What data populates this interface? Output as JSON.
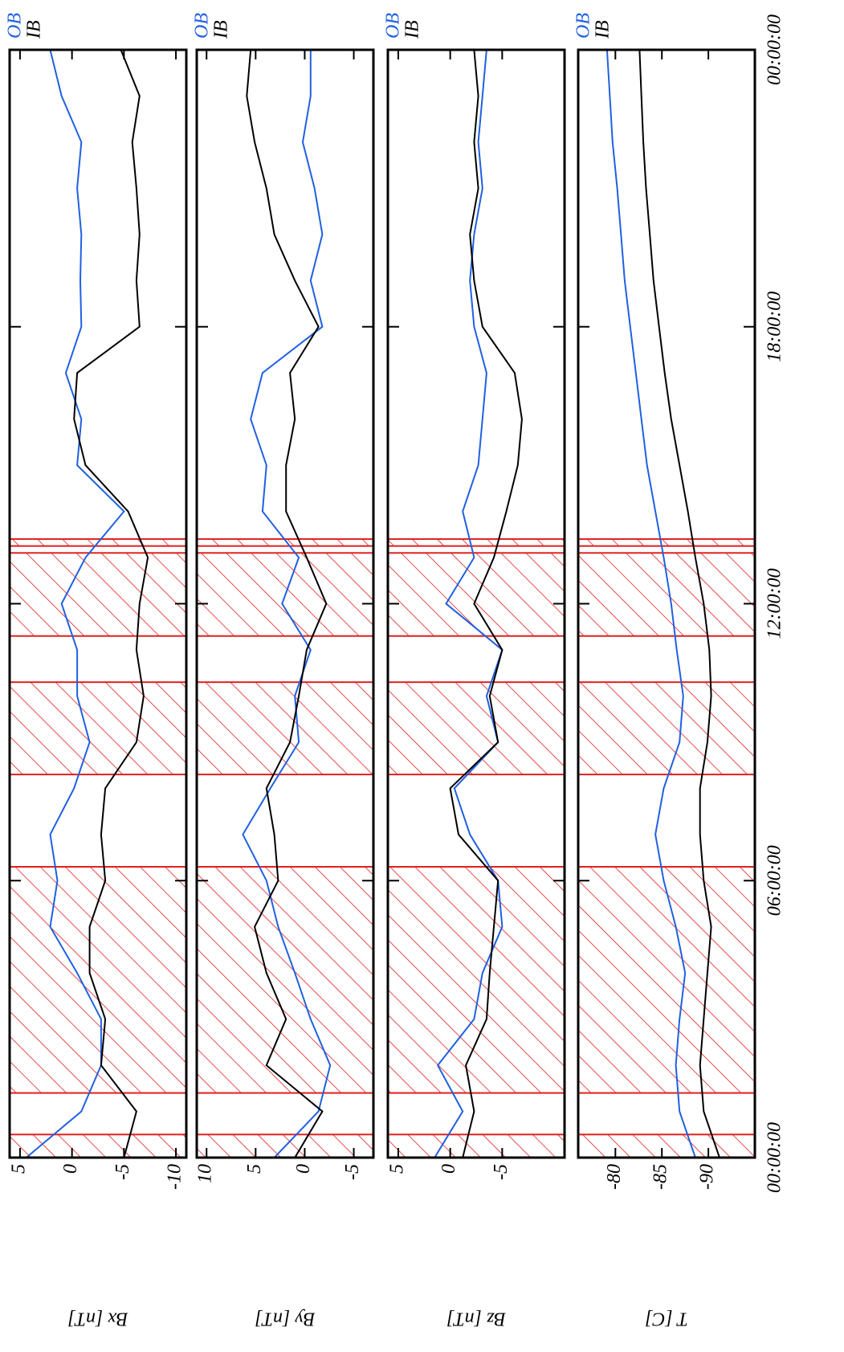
{
  "chart_data": [
    {
      "type": "line",
      "ylabel": "Bx [nT]",
      "xlim": [
        0,
        24
      ],
      "xticks": [
        {
          "value": 0,
          "label": "00:00:00"
        },
        {
          "value": 6,
          "label": "06:00:00"
        },
        {
          "value": 12,
          "label": "12:00:00"
        },
        {
          "value": 18,
          "label": "18:00:00"
        },
        {
          "value": 24,
          "label": "00:00:00"
        }
      ],
      "ylim": [
        -11,
        6
      ],
      "yticks": [
        5,
        0,
        -5,
        -10
      ],
      "hatched_intervals": [
        [
          0,
          0.5
        ],
        [
          1.4,
          6.3
        ],
        [
          8.3,
          10.3
        ],
        [
          11.3,
          13.1
        ],
        [
          13.25,
          13.4
        ]
      ],
      "hatch_color": "#e02020",
      "x": [
        0,
        1,
        2,
        3,
        4,
        5,
        6,
        7,
        8,
        9,
        10,
        11,
        12,
        13,
        14,
        15,
        16,
        17,
        18,
        19,
        20,
        21,
        22,
        23,
        24
      ],
      "series": [
        {
          "name": "OB",
          "color": "#2060e0",
          "values": [
            4.4,
            -0.9,
            -2.8,
            -2.8,
            -0.5,
            2.1,
            1.4,
            2.1,
            -0.2,
            -1.7,
            -0.5,
            -0.5,
            1.0,
            -1.3,
            -5,
            -0.5,
            -0.9,
            0.6,
            -0.9,
            -0.8,
            -0.9,
            -0.5,
            -0.9,
            1.0,
            2.1
          ]
        },
        {
          "name": "IB",
          "color": "#000000",
          "values": [
            -5,
            -6.2,
            -2.8,
            -3.2,
            -1.7,
            -1.7,
            -3.2,
            -2.8,
            -3.2,
            -6.2,
            -6.9,
            -6.2,
            -6.5,
            -7.3,
            -5.4,
            -1.3,
            -0.2,
            -0.5,
            -6.5,
            -6.2,
            -6.5,
            -6.2,
            -5.8,
            -6.5,
            -4.7
          ]
        }
      ]
    },
    {
      "type": "line",
      "ylabel": "By [nT]",
      "xlim": [
        0,
        24
      ],
      "xticks": [
        {
          "value": 0,
          "label": "00:00:00"
        },
        {
          "value": 6,
          "label": "06:00:00"
        },
        {
          "value": 12,
          "label": "12:00:00"
        },
        {
          "value": 18,
          "label": "18:00:00"
        },
        {
          "value": 24,
          "label": "00:00:00"
        }
      ],
      "ylim": [
        -7,
        11
      ],
      "yticks": [
        10,
        5,
        0,
        -5
      ],
      "hatched_intervals": [
        [
          0,
          0.5
        ],
        [
          1.4,
          6.3
        ],
        [
          8.3,
          10.3
        ],
        [
          11.3,
          13.1
        ],
        [
          13.25,
          13.4
        ]
      ],
      "hatch_color": "#e02020",
      "x": [
        0,
        1,
        2,
        3,
        4,
        5,
        6,
        7,
        8,
        9,
        10,
        11,
        12,
        13,
        14,
        15,
        16,
        17,
        18,
        19,
        20,
        21,
        22,
        23,
        24
      ],
      "series": [
        {
          "name": "OB",
          "color": "#2060e0",
          "values": [
            3.1,
            -1.4,
            -2.6,
            -0.6,
            1.0,
            2.7,
            3.9,
            6.3,
            3.5,
            0.6,
            1.0,
            -0.6,
            2.3,
            0.6,
            4.3,
            3.9,
            5.5,
            4.3,
            -1.8,
            -0.6,
            -1.8,
            -1.0,
            0.2,
            -0.6,
            -0.6
          ]
        },
        {
          "name": "IB",
          "color": "#000000",
          "values": [
            1.0,
            -1.8,
            3.9,
            1.9,
            3.9,
            5.1,
            2.7,
            3.1,
            3.9,
            1.5,
            0.6,
            -0.2,
            -2.2,
            -0.2,
            1.9,
            1.9,
            1.0,
            1.5,
            -1.4,
            1.0,
            3.1,
            3.9,
            5.1,
            5.9,
            5.5
          ]
        }
      ]
    },
    {
      "type": "line",
      "ylabel": "Bz [nT]",
      "xlim": [
        0,
        24
      ],
      "xticks": [
        {
          "value": 0,
          "label": "00:00:00"
        },
        {
          "value": 6,
          "label": "06:00:00"
        },
        {
          "value": 12,
          "label": "12:00:00"
        },
        {
          "value": 18,
          "label": "18:00:00"
        },
        {
          "value": 24,
          "label": "00:00:00"
        }
      ],
      "ylim": [
        -11,
        6
      ],
      "yticks": [
        5,
        0,
        -5
      ],
      "hatched_intervals": [
        [
          0,
          0.5
        ],
        [
          1.4,
          6.3
        ],
        [
          8.3,
          10.3
        ],
        [
          11.3,
          13.1
        ],
        [
          13.25,
          13.4
        ]
      ],
      "hatch_color": "#e02020",
      "x": [
        0,
        1,
        2,
        3,
        4,
        5,
        6,
        7,
        8,
        9,
        10,
        11,
        12,
        13,
        14,
        15,
        16,
        17,
        18,
        19,
        20,
        21,
        22,
        23,
        24
      ],
      "series": [
        {
          "name": "OB",
          "color": "#2060e0",
          "values": [
            1.5,
            -1.2,
            1.2,
            -2.3,
            -3.1,
            -5,
            -4.6,
            -1.9,
            -0.4,
            -4.6,
            -3.5,
            -5,
            0.4,
            -2.3,
            -1.2,
            -2.7,
            -3.1,
            -3.5,
            -2.3,
            -1.9,
            -2.3,
            -3.1,
            -2.7,
            -3.1,
            -3.5
          ]
        },
        {
          "name": "IB",
          "color": "#000000",
          "values": [
            -1.2,
            -2.3,
            -1.5,
            -3.5,
            -3.8,
            -4.2,
            -4.6,
            -0.8,
            0,
            -4.6,
            -3.8,
            -5,
            -2.3,
            -4.2,
            -5.4,
            -6.5,
            -6.9,
            -6.2,
            -3.1,
            -2.3,
            -1.9,
            -2.7,
            -2.3,
            -2.7,
            -2.3
          ]
        }
      ]
    },
    {
      "type": "line",
      "ylabel": "T [C]",
      "xlim": [
        0,
        24
      ],
      "xticks": [
        {
          "value": 0,
          "label": "00:00:00"
        },
        {
          "value": 6,
          "label": "06:00:00"
        },
        {
          "value": 12,
          "label": "12:00:00"
        },
        {
          "value": 18,
          "label": "18:00:00"
        },
        {
          "value": 24,
          "label": "00:00:00"
        }
      ],
      "ylim": [
        -95,
        -76
      ],
      "yticks": [
        -80,
        -85,
        -90
      ],
      "hatched_intervals": [
        [
          0,
          0.5
        ],
        [
          1.4,
          6.3
        ],
        [
          8.3,
          10.3
        ],
        [
          11.3,
          13.1
        ],
        [
          13.25,
          13.4
        ]
      ],
      "hatch_color": "#e02020",
      "x": [
        0,
        1,
        2,
        3,
        4,
        5,
        6,
        7,
        8,
        9,
        10,
        11,
        12,
        13,
        14,
        15,
        16,
        17,
        18,
        19,
        20,
        21,
        22,
        23,
        24
      ],
      "series": [
        {
          "name": "OB",
          "color": "#2060e0",
          "values": [
            -88.6,
            -86.9,
            -86.5,
            -86.9,
            -87.5,
            -86.5,
            -85.2,
            -84.3,
            -85.2,
            -86.9,
            -87.3,
            -86.6,
            -86.0,
            -85.2,
            -84.3,
            -83.4,
            -82.8,
            -82.2,
            -81.6,
            -81.0,
            -80.6,
            -80.2,
            -79.7,
            -79.4,
            -79.1
          ]
        },
        {
          "name": "IB",
          "color": "#000000",
          "values": [
            -91.2,
            -89.5,
            -89.1,
            -89.5,
            -89.9,
            -90.3,
            -89.5,
            -89.1,
            -89.1,
            -89.9,
            -90.3,
            -90.1,
            -89.5,
            -88.6,
            -87.8,
            -86.9,
            -86.0,
            -85.3,
            -84.7,
            -84.1,
            -83.7,
            -83.3,
            -83.0,
            -82.8,
            -82.6
          ]
        }
      ]
    }
  ]
}
